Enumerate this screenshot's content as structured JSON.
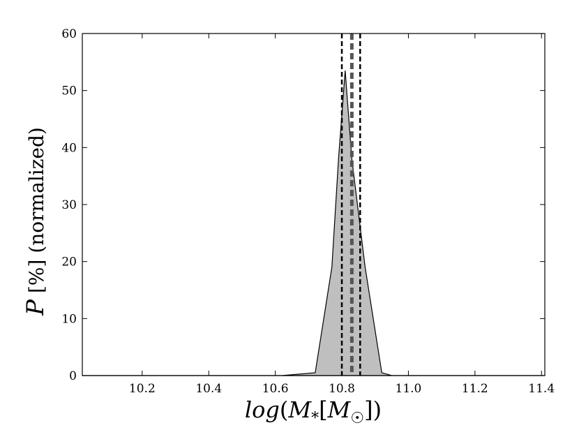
{
  "chart_data": {
    "type": "area",
    "title": "",
    "xlabel": "log(M*[M☉])",
    "ylabel": "P [%] (normalized)",
    "xlim": [
      10.02,
      11.41
    ],
    "ylim": [
      0,
      60
    ],
    "x_ticks": [
      "10.2",
      "10.4",
      "10.6",
      "10.8",
      "11.0",
      "11.2",
      "11.4"
    ],
    "y_ticks": [
      "0",
      "10",
      "20",
      "30",
      "40",
      "50",
      "60"
    ],
    "grid": false,
    "legend": "none",
    "series": [
      {
        "x": [
          10.02,
          10.62,
          10.72,
          10.77,
          10.79,
          10.81,
          10.83,
          10.87,
          10.92,
          10.95,
          11.41
        ],
        "values": [
          0,
          0,
          0.5,
          19,
          38,
          53.5,
          38,
          19,
          0.5,
          0,
          0
        ],
        "fill_color": "#bfbfbf",
        "line_color": "#000000"
      }
    ],
    "vertical_lines": [
      {
        "x": 10.8,
        "style": "dashed",
        "color": "#000000"
      },
      {
        "x": 10.83,
        "style": "dashed-thick",
        "color": "#555555"
      },
      {
        "x": 10.855,
        "style": "dashed",
        "color": "#000000"
      }
    ]
  }
}
